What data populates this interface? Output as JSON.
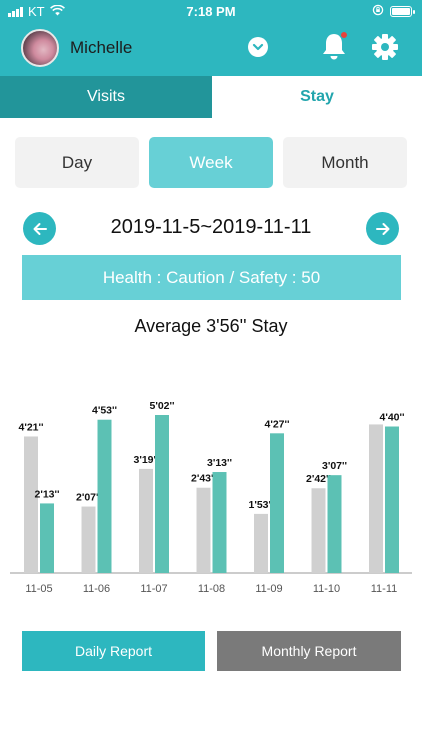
{
  "status_bar": {
    "carrier": "KT",
    "time": "7:18 PM",
    "icons": [
      "signal-bars-icon",
      "wifi-icon",
      "lock-rotation-icon",
      "battery-icon"
    ]
  },
  "header": {
    "username": "Michelle",
    "icons": [
      "avatar",
      "chevron-down-icon",
      "bell-icon",
      "gear-icon"
    ],
    "notification_dot_color": "#e8423b"
  },
  "tabs": [
    {
      "label": "Visits",
      "active": false
    },
    {
      "label": "Stay",
      "active": true
    }
  ],
  "period_selector": {
    "options": [
      "Day",
      "Week",
      "Month"
    ],
    "selected": "Week"
  },
  "date_nav": {
    "range": "2019-11-5~2019-11-11",
    "prev_icon": "arrow-left-icon",
    "next_icon": "arrow-right-icon"
  },
  "health_banner": "Health : Caution / Safety : 50",
  "average_label": "Average 3'56'' Stay",
  "buttons": {
    "daily_report": "Daily Report",
    "monthly_report": "Monthly Report"
  },
  "colors": {
    "primary": "#2db7bf",
    "primary_dark": "#22959a",
    "light_teal": "#67d0d6",
    "bar_teal": "#5cc1b4",
    "bar_gray": "#d0d0d0"
  },
  "chart_data": {
    "type": "bar",
    "categories": [
      "11-05",
      "11-06",
      "11-07",
      "11-08",
      "11-09",
      "11-10",
      "11-11"
    ],
    "series": [
      {
        "values_seconds": [
          261,
          127,
          199,
          163,
          113,
          162,
          284
        ],
        "labels": [
          "4'21''",
          "2'07''",
          "3'19''",
          "2'43''",
          "1'53''",
          "2'42''",
          ""
        ],
        "color": "#d0d0d0"
      },
      {
        "values_seconds": [
          133,
          293,
          302,
          193,
          267,
          187,
          280
        ],
        "labels": [
          "2'13''",
          "4'53''",
          "5'02''",
          "3'13''",
          "4'27''",
          "3'07''",
          "4'40''"
        ],
        "color": "#5cc1b4"
      }
    ],
    "grid": false
  }
}
